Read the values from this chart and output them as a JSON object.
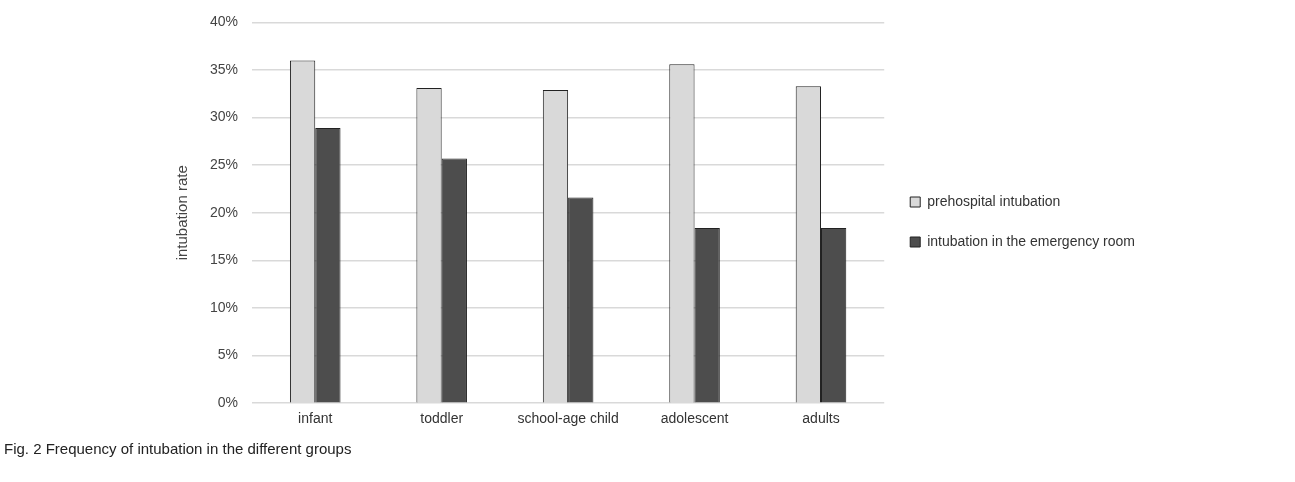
{
  "chart_data": {
    "type": "bar",
    "ylabel": "intubation rate",
    "categories": [
      "infant",
      "toddler",
      "school-age child",
      "adolescent",
      "adults"
    ],
    "series": [
      {
        "name": "prehospital intubation",
        "color": "#d9d9d9",
        "values": [
          36.0,
          33.1,
          32.9,
          35.6,
          33.3
        ]
      },
      {
        "name": "intubation in the emergency room",
        "color": "#4d4d4d",
        "values": [
          28.9,
          25.7,
          21.6,
          18.4,
          18.4
        ]
      }
    ],
    "ylim": [
      0,
      40
    ],
    "yticks": [
      {
        "value": 0,
        "label": "0%"
      },
      {
        "value": 5,
        "label": "5%"
      },
      {
        "value": 10,
        "label": "10%"
      },
      {
        "value": 15,
        "label": "15%"
      },
      {
        "value": 20,
        "label": "20%"
      },
      {
        "value": 25,
        "label": "25%"
      },
      {
        "value": 30,
        "label": "30%"
      },
      {
        "value": 35,
        "label": "35%"
      },
      {
        "value": 40,
        "label": "40%"
      }
    ],
    "grid": "y",
    "legend": "right",
    "annotations": [
      "Fig. 2  Frequency of intubation in the different groups"
    ]
  }
}
